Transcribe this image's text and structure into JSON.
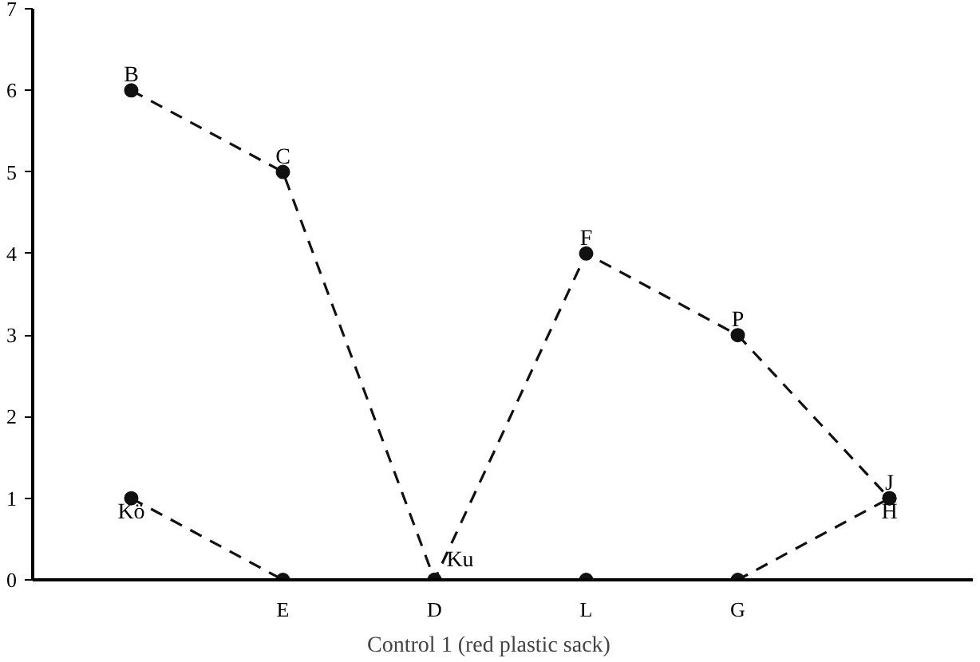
{
  "chart_data": {
    "type": "line",
    "xlabel": "Control 1      (red plastic sack)",
    "categories": [
      null,
      "E",
      "D",
      "L",
      "G",
      null
    ],
    "series": [
      {
        "color": "#111111",
        "values": [
          6,
          5,
          0,
          4,
          3,
          1
        ],
        "value_labels": [
          "B",
          "C",
          "Ku",
          "F",
          "P",
          "J"
        ]
      },
      {
        "color": "#111111",
        "values": [
          1,
          0,
          0,
          0,
          0,
          1
        ],
        "value_labels": [
          "Kö",
          null,
          null,
          null,
          null,
          "H"
        ]
      }
    ],
    "ylim": [
      0,
      7
    ],
    "yticks": [
      0,
      1,
      2,
      3,
      4,
      5,
      6,
      7
    ],
    "marker": "circle",
    "line_style": "dashed"
  }
}
